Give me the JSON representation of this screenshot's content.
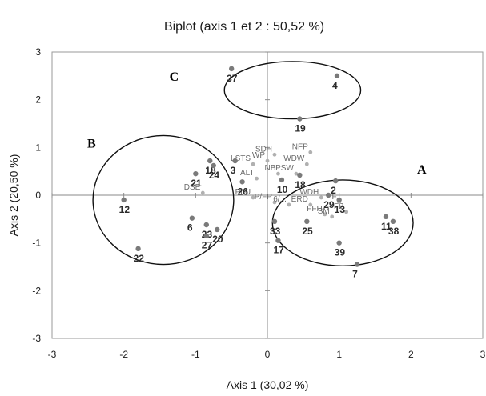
{
  "chart_data": {
    "type": "scatter",
    "title": "Biplot (axis 1 et 2 : 50,52 %)",
    "xlabel": "Axis 1 (30,02 %)",
    "ylabel": "Axis 2 (20,50 %)",
    "xlim": [
      -3,
      3
    ],
    "ylim": [
      -3,
      3
    ],
    "xticks": [
      "-3",
      "-2",
      "-1",
      "0",
      "1",
      "2",
      "3"
    ],
    "yticks": [
      "-3",
      "-2",
      "-1",
      "0",
      "1",
      "2",
      "3"
    ],
    "grid": false,
    "series": [
      {
        "role": "observations",
        "color": "#7a7a7a",
        "points": [
          {
            "label": "37",
            "x": -0.5,
            "y": 2.65
          },
          {
            "label": "4",
            "x": 0.97,
            "y": 2.5
          },
          {
            "label": "19",
            "x": 0.45,
            "y": 1.6
          },
          {
            "label": "18",
            "x": -0.8,
            "y": 0.72
          },
          {
            "label": "3",
            "x": -0.45,
            "y": 0.72
          },
          {
            "label": "24",
            "x": -0.75,
            "y": 0.62
          },
          {
            "label": "21",
            "x": -1.0,
            "y": 0.45
          },
          {
            "label": "26",
            "x": -0.35,
            "y": 0.28
          },
          {
            "label": "12",
            "x": -2.0,
            "y": -0.1
          },
          {
            "label": "6",
            "x": -1.05,
            "y": -0.48
          },
          {
            "label": "23",
            "x": -0.85,
            "y": -0.62
          },
          {
            "label": "20",
            "x": -0.7,
            "y": -0.72
          },
          {
            "label": "27",
            "x": -0.85,
            "y": -0.85
          },
          {
            "label": "22",
            "x": -1.8,
            "y": -1.12
          },
          {
            "label": "33",
            "x": 0.1,
            "y": -0.55
          },
          {
            "label": "17",
            "x": 0.15,
            "y": -0.95
          },
          {
            "label": "25",
            "x": 0.55,
            "y": -0.55
          },
          {
            "label": "2",
            "x": 0.95,
            "y": 0.3
          },
          {
            "label": "29",
            "x": 0.85,
            "y": 0.0
          },
          {
            "label": "13",
            "x": 1.0,
            "y": -0.1
          },
          {
            "label": "11",
            "x": 1.65,
            "y": -0.45
          },
          {
            "label": "38",
            "x": 1.75,
            "y": -0.55
          },
          {
            "label": "39",
            "x": 1.0,
            "y": -1.0
          },
          {
            "label": "7",
            "x": 1.25,
            "y": -1.45
          },
          {
            "label": "10",
            "x": 0.2,
            "y": 0.32
          },
          {
            "label": "18",
            "x": 0.45,
            "y": 0.42
          }
        ]
      },
      {
        "role": "variables",
        "color": "#b0b0b0",
        "points": [
          {
            "label": "SDH",
            "x": 0.1,
            "y": 0.85
          },
          {
            "label": "NFP",
            "x": 0.6,
            "y": 0.9
          },
          {
            "label": "LSTS",
            "x": -0.2,
            "y": 0.65
          },
          {
            "label": "WP",
            "x": 0.0,
            "y": 0.72
          },
          {
            "label": "WDW",
            "x": 0.55,
            "y": 0.65
          },
          {
            "label": "NB",
            "x": 0.15,
            "y": 0.45
          },
          {
            "label": "PSW",
            "x": 0.4,
            "y": 0.45
          },
          {
            "label": "ALT",
            "x": -0.15,
            "y": 0.35
          },
          {
            "label": "DSE",
            "x": -0.9,
            "y": 0.05
          },
          {
            "label": "PLU",
            "x": -0.2,
            "y": -0.05
          },
          {
            "label": "P/FP",
            "x": 0.1,
            "y": -0.15
          },
          {
            "label": "6/...",
            "x": 0.3,
            "y": -0.2
          },
          {
            "label": "ERD",
            "x": 0.6,
            "y": -0.2
          },
          {
            "label": "WDH",
            "x": 0.75,
            "y": -0.05
          },
          {
            "label": "FFH",
            "x": 0.8,
            "y": -0.4
          },
          {
            "label": "SM",
            "x": 0.9,
            "y": -0.45
          },
          {
            "label": "FB",
            "x": 1.1,
            "y": -0.35
          },
          {
            "label": "F",
            "x": 1.0,
            "y": -0.15
          }
        ]
      }
    ],
    "groups": [
      {
        "label": "A",
        "cx": 1.05,
        "cy": -0.58,
        "rx": 0.98,
        "ry": 0.9,
        "label_x": 2.15,
        "label_y": 0.45
      },
      {
        "label": "B",
        "cx": -1.45,
        "cy": -0.1,
        "rx": 0.98,
        "ry": 1.35,
        "label_x": -2.45,
        "label_y": 1.0
      },
      {
        "label": "C",
        "cx": 0.35,
        "cy": 2.2,
        "rx": 0.95,
        "ry": 0.6,
        "label_x": -1.3,
        "label_y": 2.4
      }
    ]
  }
}
